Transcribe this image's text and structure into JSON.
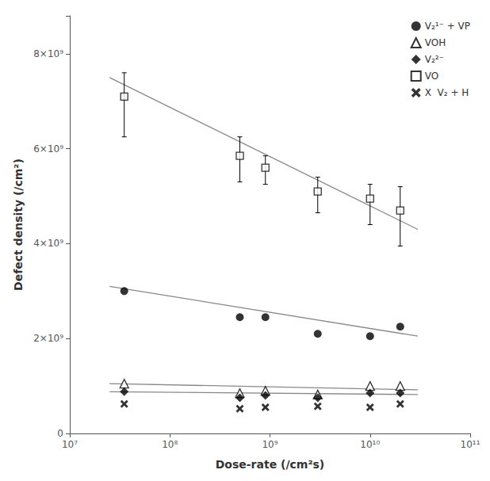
{
  "chart_data": {
    "type": "scatter",
    "xlabel": "Dose-rate (/cm²s)",
    "ylabel": "Defect density (/cm²)",
    "log": "x",
    "grid": false,
    "legend": "upper right",
    "xlim": [
      10000000,
      100000000000
    ],
    "xticks": [
      {
        "value": 10000000,
        "label": "10⁷"
      },
      {
        "value": 100000000,
        "label": "10⁸"
      },
      {
        "value": 1000000000,
        "label": "10⁹"
      },
      {
        "value": 10000000000,
        "label": "10¹⁰"
      },
      {
        "value": 100000000000,
        "label": "10¹¹"
      }
    ],
    "ylim": [
      0,
      8800000000
    ],
    "yticks": [
      0,
      {
        "value": 2000000000,
        "label": "2×10⁹"
      },
      {
        "value": 4000000000,
        "label": "4×10⁹"
      },
      {
        "value": 6000000000,
        "label": "6×10⁹"
      },
      {
        "value": 8000000000,
        "label": "8×10⁹"
      }
    ],
    "series": [
      {
        "name": "V₂¹⁻ + VP",
        "type": "scatter",
        "marker": "circle",
        "color": "#000000",
        "x": [
          35000000,
          500000000,
          900000000,
          3000000000,
          10000000000,
          20000000000
        ],
        "values": [
          3000000000,
          2450000000,
          2450000000,
          2100000000,
          2050000000,
          2250000000
        ]
      },
      {
        "name": "VOH",
        "type": "scatter",
        "marker": "open-triangle",
        "color": "#000000",
        "x": [
          35000000,
          500000000,
          900000000,
          3000000000,
          10000000000,
          20000000000
        ],
        "values": [
          1050000000,
          850000000,
          900000000,
          820000000,
          1000000000,
          1000000000
        ]
      },
      {
        "name": "V₂²⁻",
        "type": "scatter",
        "marker": "diamond",
        "color": "#000000",
        "x": [
          35000000,
          500000000,
          900000000,
          3000000000,
          10000000000,
          20000000000
        ],
        "values": [
          880000000,
          750000000,
          800000000,
          750000000,
          850000000,
          850000000
        ]
      },
      {
        "name": "VO",
        "type": "scatter",
        "marker": "open-square",
        "color": "#000000",
        "x": [
          35000000,
          500000000,
          900000000,
          3000000000,
          10000000000,
          20000000000
        ],
        "values": [
          7100000000,
          5850000000,
          5600000000,
          5100000000,
          4950000000,
          4700000000
        ],
        "error_low": [
          850000000,
          550000000,
          350000000,
          450000000,
          550000000,
          750000000
        ],
        "error_high": [
          500000000,
          400000000,
          250000000,
          300000000,
          300000000,
          500000000
        ]
      },
      {
        "name": "X  V₂ + H",
        "type": "scatter",
        "marker": "x",
        "color": "#000000",
        "x": [
          35000000,
          500000000,
          900000000,
          3000000000,
          10000000000,
          20000000000
        ],
        "values": [
          620000000,
          520000000,
          550000000,
          570000000,
          550000000,
          620000000
        ]
      },
      {
        "type": "line",
        "line_style": "solid",
        "color": "#888888",
        "x": [
          25000000,
          30000000000
        ],
        "values": [
          7500000000,
          4300000000
        ]
      },
      {
        "type": "line",
        "line_style": "solid",
        "color": "#888888",
        "x": [
          25000000,
          30000000000
        ],
        "values": [
          3100000000,
          2050000000
        ]
      },
      {
        "type": "line",
        "line_style": "solid",
        "color": "#888888",
        "x": [
          25000000,
          30000000000
        ],
        "values": [
          1050000000,
          920000000
        ]
      },
      {
        "type": "line",
        "line_style": "solid",
        "color": "#888888",
        "x": [
          25000000,
          30000000000
        ],
        "values": [
          880000000,
          820000000
        ]
      }
    ]
  }
}
